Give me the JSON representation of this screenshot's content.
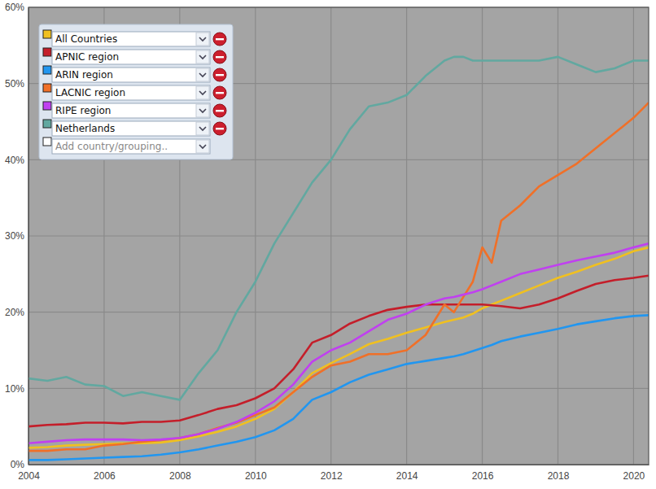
{
  "chart_data": {
    "type": "line",
    "x": [
      2004,
      2004.5,
      2005,
      2005.5,
      2006,
      2006.5,
      2007,
      2007.5,
      2008,
      2008.5,
      2009,
      2009.5,
      2010,
      2010.5,
      2011,
      2011.5,
      2012,
      2012.5,
      2013,
      2013.5,
      2014,
      2014.5,
      2015,
      2015.25,
      2015.5,
      2015.75,
      2016,
      2016.25,
      2016.5,
      2017,
      2017.5,
      2018,
      2018.5,
      2019,
      2019.5,
      2020,
      2020.4
    ],
    "series": [
      {
        "name": "All Countries",
        "color": "#f0c020",
        "values": [
          2.2,
          2.3,
          2.5,
          2.6,
          2.7,
          2.8,
          2.8,
          2.9,
          3.2,
          3.7,
          4.3,
          5,
          6,
          7.3,
          9.5,
          12,
          13.3,
          14.5,
          15.8,
          16.5,
          17.3,
          18,
          18.7,
          19,
          19.3,
          19.8,
          20.5,
          21,
          21.5,
          22.5,
          23.5,
          24.5,
          25.3,
          26.2,
          27,
          28,
          28.5
        ]
      },
      {
        "name": "APNIC region",
        "color": "#c41e2a",
        "values": [
          5,
          5.2,
          5.3,
          5.5,
          5.5,
          5.4,
          5.6,
          5.6,
          5.8,
          6.5,
          7.3,
          7.8,
          8.7,
          10,
          12.5,
          16,
          17,
          18.5,
          19.5,
          20.3,
          20.7,
          21,
          21,
          21,
          21,
          21,
          21,
          20.9,
          20.8,
          20.5,
          21,
          21.8,
          22.8,
          23.7,
          24.2,
          24.5,
          24.8
        ]
      },
      {
        "name": "ARIN region",
        "color": "#2196f0",
        "values": [
          0.6,
          0.6,
          0.7,
          0.8,
          0.9,
          1,
          1.1,
          1.3,
          1.6,
          2,
          2.5,
          3,
          3.6,
          4.5,
          6,
          8.5,
          9.5,
          10.8,
          11.8,
          12.5,
          13.2,
          13.6,
          14,
          14.2,
          14.5,
          14.9,
          15.3,
          15.7,
          16.2,
          16.8,
          17.3,
          17.8,
          18.4,
          18.8,
          19.2,
          19.5,
          19.6
        ]
      },
      {
        "name": "LACNIC region",
        "color": "#f07028",
        "values": [
          1.8,
          1.8,
          2,
          2,
          2.5,
          2.7,
          3,
          3.2,
          3.5,
          4,
          4.8,
          5.5,
          6.5,
          7.5,
          9.5,
          11.5,
          13,
          13.5,
          14.5,
          14.5,
          15,
          17,
          21,
          20,
          22,
          24,
          28.5,
          26.5,
          32,
          34,
          36.5,
          38,
          39.5,
          41.5,
          43.5,
          45.5,
          47.5
        ]
      },
      {
        "name": "RIPE region",
        "color": "#c040f0",
        "values": [
          2.8,
          3,
          3.2,
          3.3,
          3.3,
          3.3,
          3.2,
          3.3,
          3.5,
          4,
          4.7,
          5.6,
          6.8,
          8.3,
          10.5,
          13.5,
          15,
          16,
          17.5,
          19,
          19.8,
          21,
          21.8,
          22,
          22.3,
          22.6,
          23,
          23.5,
          24,
          25,
          25.6,
          26.2,
          26.8,
          27.3,
          27.8,
          28.5,
          29
        ]
      },
      {
        "name": "Netherlands",
        "color": "#62a8a0",
        "values": [
          11.3,
          11,
          11.5,
          10.5,
          10.3,
          9,
          9.5,
          9,
          8.5,
          12,
          15,
          20,
          24,
          29,
          33,
          37,
          40,
          44,
          47,
          47.5,
          48.5,
          51,
          53,
          53.5,
          53.5,
          53,
          53,
          53,
          53,
          53,
          53,
          53.5,
          52.5,
          51.5,
          52,
          53,
          53
        ]
      }
    ],
    "xlim": [
      2004,
      2020.4
    ],
    "xticks": [
      2004,
      2006,
      2008,
      2010,
      2012,
      2014,
      2016,
      2018,
      2020
    ],
    "ylim": [
      0,
      60
    ],
    "yticks": [
      {
        "value": 0,
        "label": "0%"
      },
      {
        "value": 10,
        "label": "10%"
      },
      {
        "value": 20,
        "label": "20%"
      },
      {
        "value": 30,
        "label": "30%"
      },
      {
        "value": 40,
        "label": "40%"
      },
      {
        "value": 50,
        "label": "50%"
      },
      {
        "value": 60,
        "label": "60%"
      }
    ],
    "grid": true,
    "legend": "top-left",
    "annotations": [
      "Add country/grouping.."
    ]
  }
}
